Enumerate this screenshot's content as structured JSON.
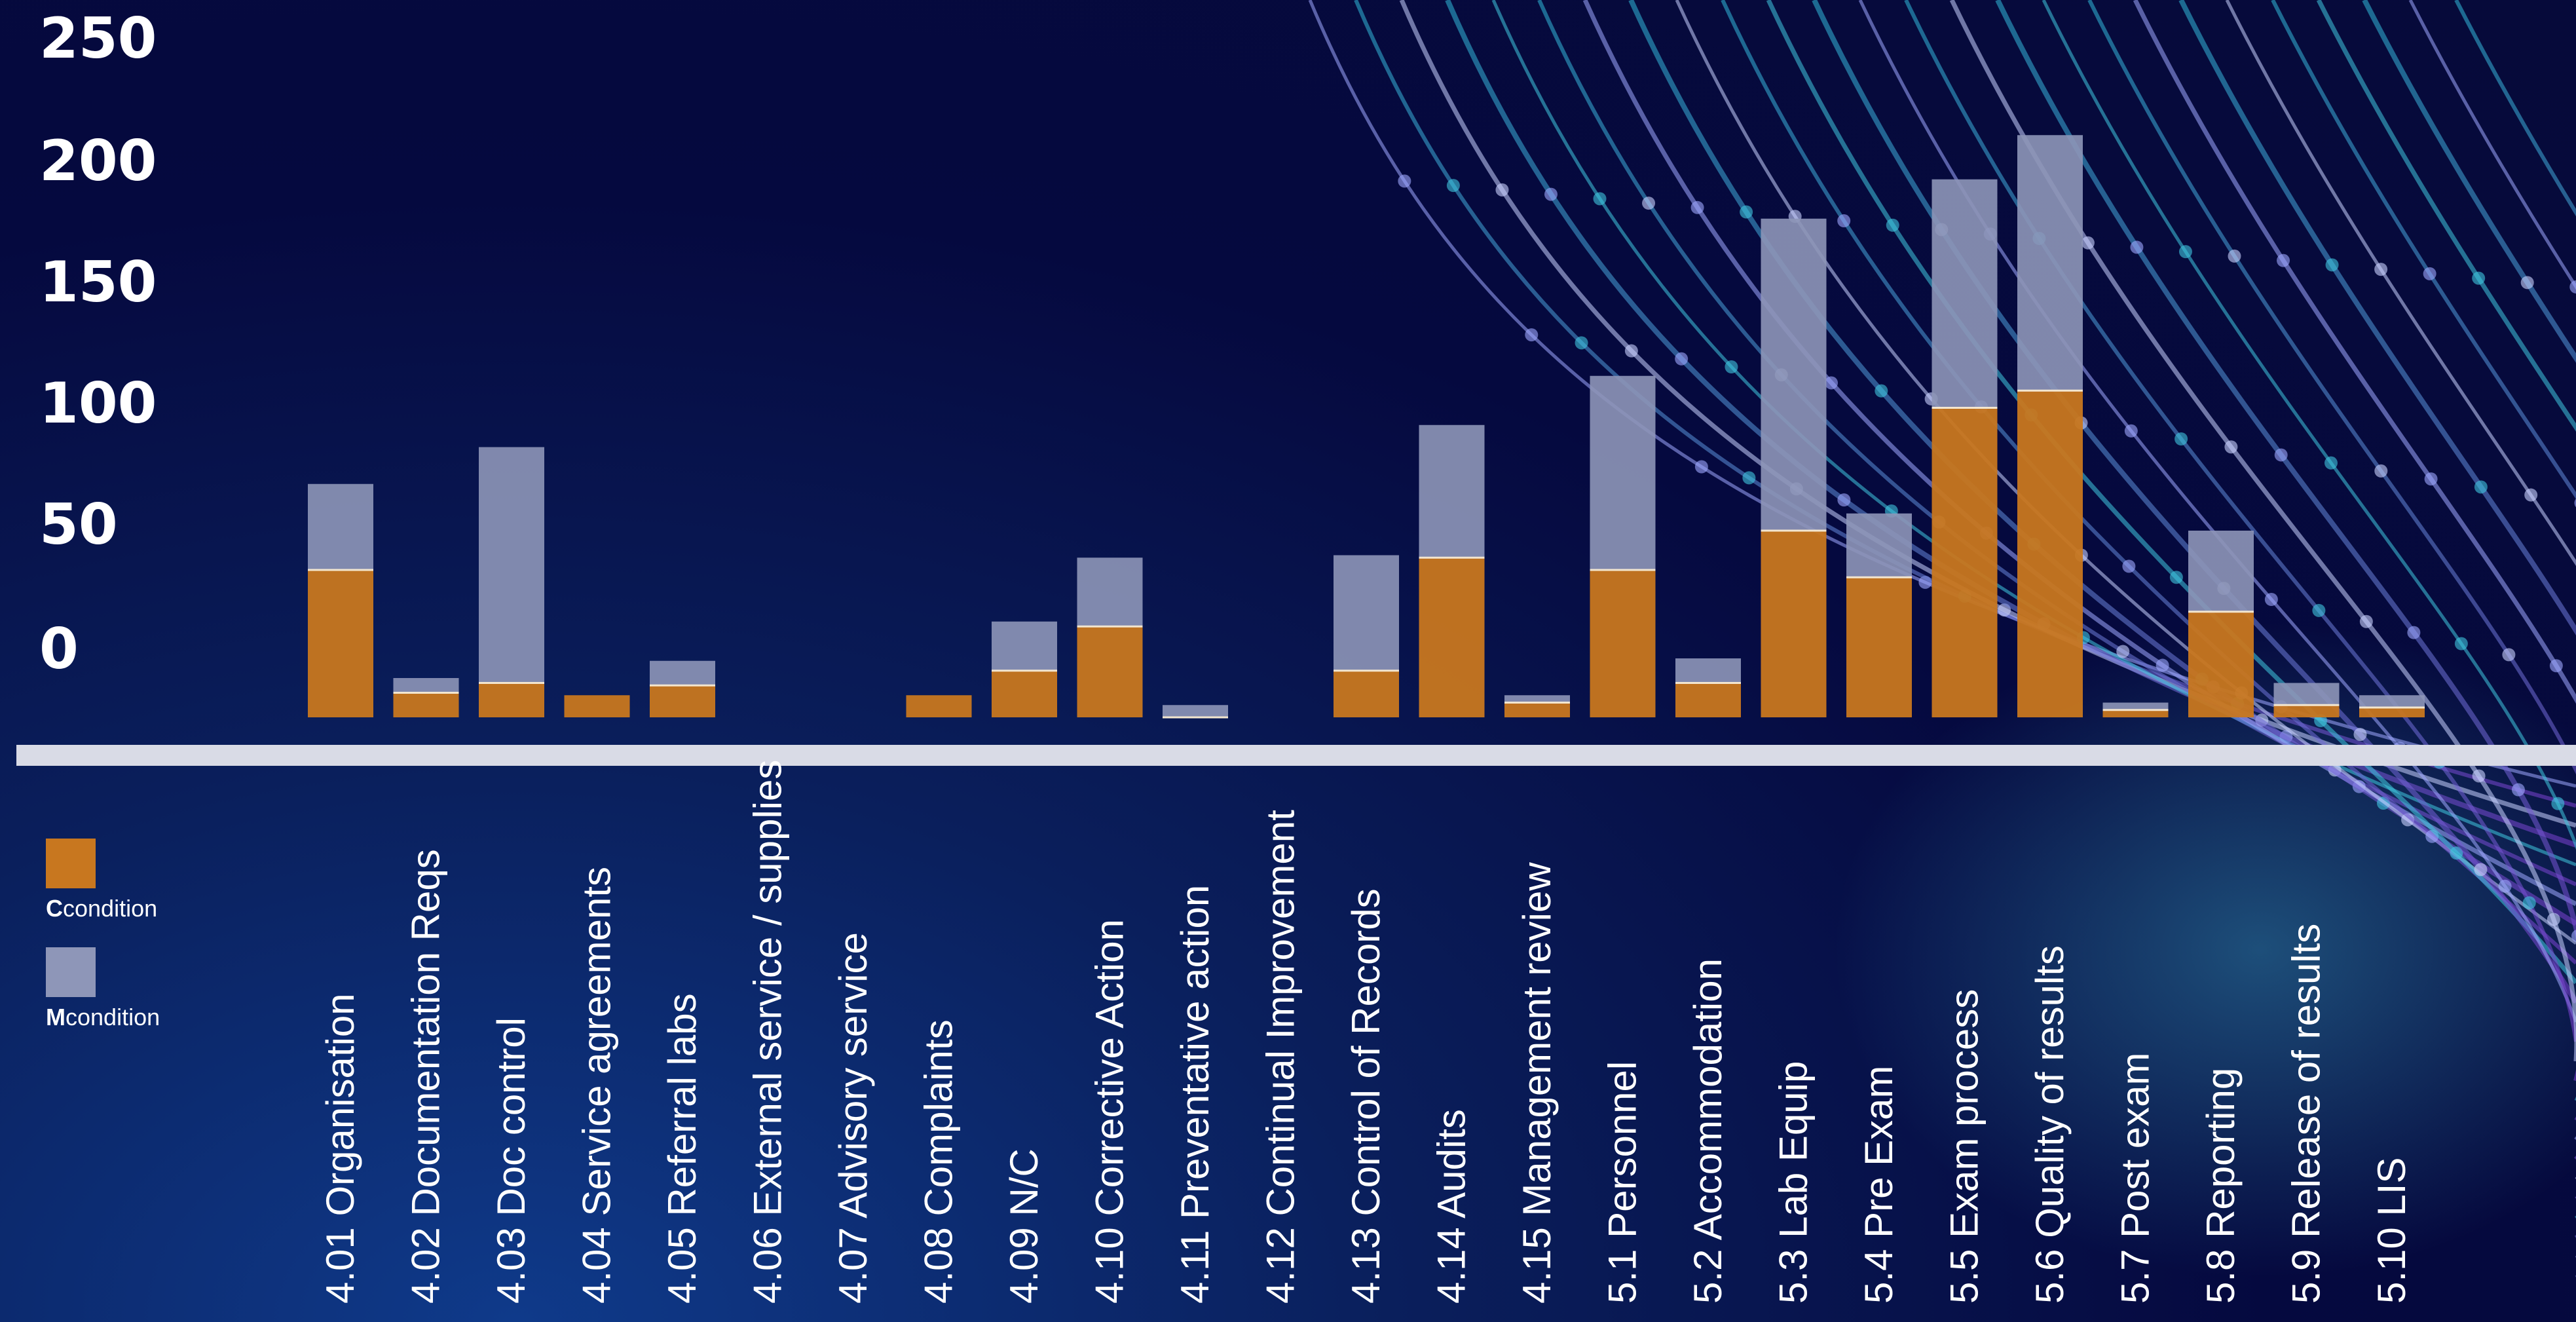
{
  "chart_data": {
    "type": "bar",
    "stacked": true,
    "categories": [
      "4.01 Organisation",
      "4.02 Documentation Reqs",
      "4.03 Doc control",
      "4.04 Service agreements",
      "4.05 Referral labs",
      "4.06 External service / supplies",
      "4.07 Advisory service",
      "4.08 Complaints",
      "4.09 N/C",
      "4.10 Corrective Action",
      "4.11 Preventative action",
      "4.12 Continual Improvement",
      "4.13 Control of Records",
      "4.14 Audits",
      "4.15 Management review",
      "5.1 Personnel",
      "5.2 Accommodation",
      "5.3  Lab Equip",
      "5.4 Pre Exam",
      "5.5 Exam process",
      "5.6 Quality of results",
      "5.7 Post exam",
      "5.8 Reporting",
      "5.9 Release of results",
      "5.10 LIS"
    ],
    "series": [
      {
        "name": "C condition",
        "color": "#c8771f",
        "values": [
          60,
          10,
          14,
          9,
          13,
          0,
          0,
          9,
          19,
          37,
          0,
          0,
          19,
          65,
          6,
          60,
          14,
          76,
          57,
          126,
          133,
          3,
          43,
          5,
          4
        ]
      },
      {
        "name": "M condition",
        "color": "#8e96b8",
        "values": [
          35,
          6,
          96,
          0,
          10,
          0,
          0,
          0,
          20,
          28,
          5,
          0,
          47,
          54,
          3,
          79,
          10,
          127,
          26,
          93,
          104,
          3,
          33,
          9,
          5
        ]
      }
    ],
    "yticks": [
      "250",
      "200",
      "150",
      "100",
      "50",
      "0"
    ],
    "ylim": [
      -30,
      250
    ],
    "legend_position": "left",
    "grid": false
  },
  "legend": {
    "items": [
      {
        "bold": "C",
        "text": "condition",
        "color": "#c8771f"
      },
      {
        "bold": "M",
        "text": "condition",
        "color": "#8e96b8"
      }
    ]
  }
}
